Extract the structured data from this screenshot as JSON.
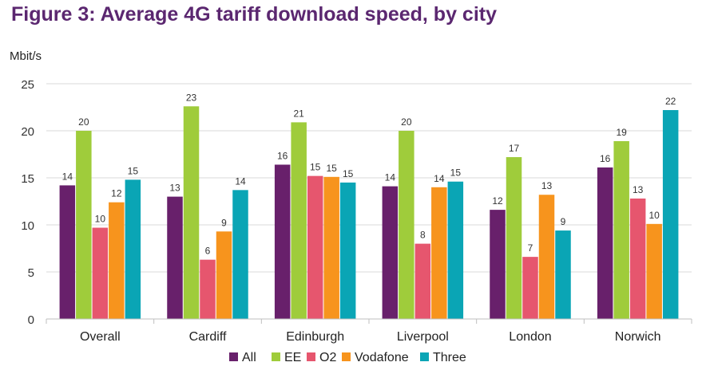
{
  "chart_data": {
    "type": "bar",
    "title": "Figure 3: Average 4G tariff download speed, by city",
    "ylabel": "Mbit/s",
    "xlabel": "",
    "ylim": [
      0,
      25
    ],
    "yticks": [
      0,
      5,
      10,
      15,
      20,
      25
    ],
    "grid": true,
    "legend_position": "bottom",
    "categories": [
      "Overall",
      "Cardiff",
      "Edinburgh",
      "Liverpool",
      "London",
      "Norwich"
    ],
    "series": [
      {
        "name": "All",
        "color": "#68206b",
        "values": [
          14.2,
          13.0,
          16.4,
          14.1,
          11.6,
          16.1
        ],
        "labels": [
          "14",
          "13",
          "16",
          "14",
          "12",
          "16"
        ]
      },
      {
        "name": "EE",
        "color": "#9fcc3b",
        "values": [
          20.0,
          22.6,
          20.9,
          20.0,
          17.2,
          18.9
        ],
        "labels": [
          "20",
          "23",
          "21",
          "20",
          "17",
          "19"
        ]
      },
      {
        "name": "O2",
        "color": "#e6566e",
        "values": [
          9.7,
          6.3,
          15.2,
          8.0,
          6.6,
          12.8
        ],
        "labels": [
          "10",
          "6",
          "15",
          "8",
          "7",
          "13"
        ]
      },
      {
        "name": "Vodafone",
        "color": "#f7941d",
        "values": [
          12.4,
          9.3,
          15.1,
          14.0,
          13.2,
          10.1
        ],
        "labels": [
          "12",
          "9",
          "15",
          "14",
          "13",
          "10"
        ]
      },
      {
        "name": "Three",
        "color": "#0aa5b5",
        "values": [
          14.8,
          13.7,
          14.5,
          14.6,
          9.4,
          22.2
        ],
        "labels": [
          "15",
          "14",
          "15",
          "15",
          "9",
          "22"
        ]
      }
    ]
  }
}
